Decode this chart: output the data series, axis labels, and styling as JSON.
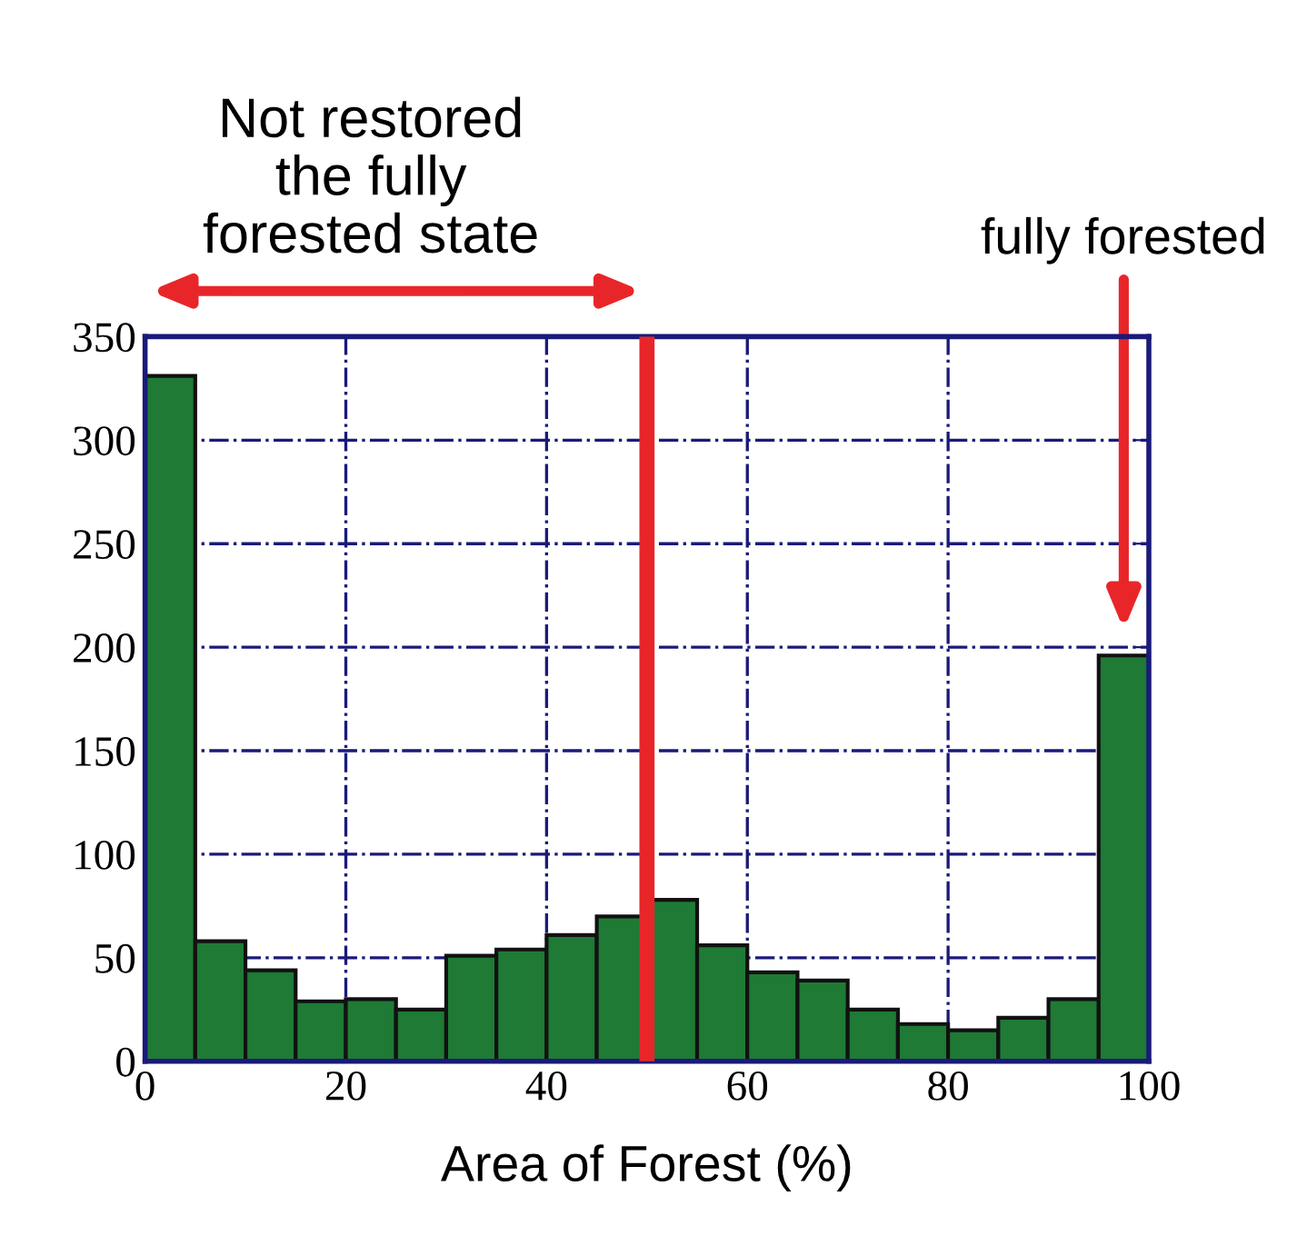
{
  "chart_data": {
    "type": "histogram",
    "xlabel": "Area of Forest (%)",
    "bins": [
      0,
      5,
      10,
      15,
      20,
      25,
      30,
      35,
      40,
      45,
      50,
      55,
      60,
      65,
      70,
      75,
      80,
      85,
      90,
      95,
      100
    ],
    "values": [
      331,
      58,
      44,
      29,
      30,
      25,
      51,
      54,
      61,
      70,
      78,
      56,
      43,
      39,
      25,
      18,
      15,
      21,
      30,
      196
    ],
    "color": "#1e7a35",
    "xlim": [
      0,
      100
    ],
    "xticks": [
      0,
      20,
      40,
      60,
      80,
      100
    ],
    "ylim": [
      0,
      350
    ],
    "yticks": [
      0,
      50,
      100,
      150,
      200,
      250,
      300,
      350
    ],
    "grid": true,
    "ref_lines": [
      {
        "axis": "x",
        "value": 50,
        "color": "#e8262a"
      }
    ],
    "annotations": [
      "Not restored\nthe fully\nforested state",
      "fully forested"
    ]
  }
}
